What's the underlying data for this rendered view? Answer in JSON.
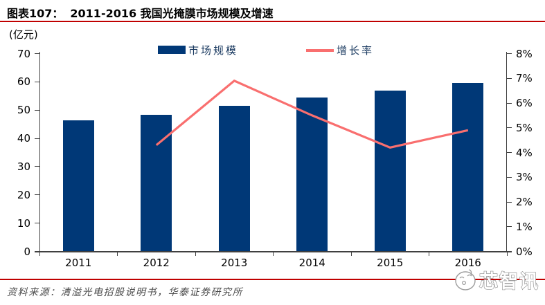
{
  "header": {
    "label": "图表107：",
    "title": "2011-2016 我国光掩膜市场规模及增速"
  },
  "legend": {
    "items": [
      {
        "label": "市场规模"
      },
      {
        "label": "增长率"
      }
    ]
  },
  "chart_data": {
    "type": "bar+line",
    "categories": [
      "2011",
      "2012",
      "2013",
      "2014",
      "2015",
      "2016"
    ],
    "series": [
      {
        "name": "市场规模",
        "type": "bar",
        "axis": "left",
        "unit": "亿元",
        "values": [
          46.3,
          48.3,
          51.6,
          54.5,
          56.8,
          59.6
        ]
      },
      {
        "name": "增长率",
        "type": "line",
        "axis": "right",
        "unit": "%",
        "values": [
          null,
          4.3,
          6.9,
          5.5,
          4.2,
          4.9
        ]
      }
    ],
    "left_axis": {
      "title": "(亿元)",
      "min": 0,
      "max": 70,
      "ticks": [
        "0",
        "10",
        "20",
        "30",
        "40",
        "50",
        "60",
        "70"
      ]
    },
    "right_axis": {
      "min": 0,
      "max": 8,
      "ticks": [
        "0%",
        "1%",
        "2%",
        "3%",
        "4%",
        "5%",
        "6%",
        "7%",
        "8%"
      ]
    },
    "grid": false,
    "legend_position": "top"
  },
  "colors": {
    "bar": "#003877",
    "line": "#F96F6F",
    "rule": "#C00000",
    "legend_text": "#17375E",
    "axis": "#404040",
    "source_text": "#4A4A4A",
    "watermark_stroke": "#8F8F8F"
  },
  "footer": {
    "source": "资料来源：清溢光电招股说明书，华泰证券研究所"
  },
  "watermark": {
    "text": "芯智讯"
  }
}
